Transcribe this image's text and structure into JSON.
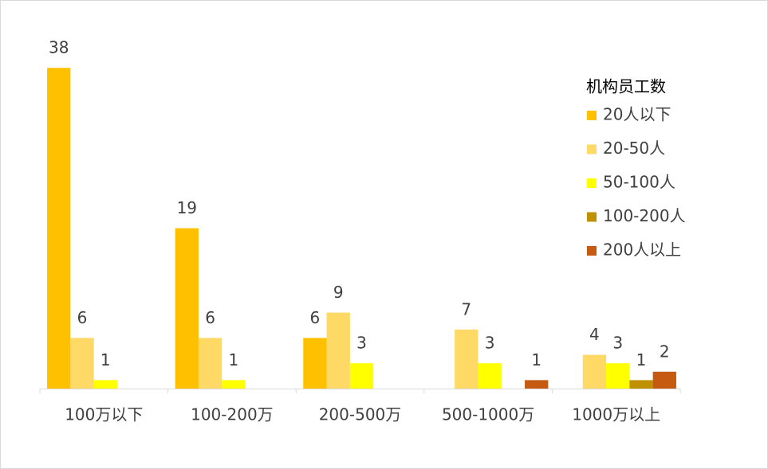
{
  "chart_data": {
    "type": "bar",
    "categories": [
      "100万以下",
      "100-200万",
      "200-500万",
      "500-1000万",
      "1000万以上"
    ],
    "legend_title": "机构员工数",
    "legend_position": "right",
    "ylim": [
      0,
      40
    ],
    "series": [
      {
        "name": "20人以下",
        "color": "#FFC000",
        "values": [
          38,
          19,
          6,
          null,
          null
        ]
      },
      {
        "name": "20-50人",
        "color": "#FFD966",
        "values": [
          6,
          6,
          9,
          7,
          4
        ]
      },
      {
        "name": "50-100人",
        "color": "#FFFF00",
        "values": [
          1,
          1,
          3,
          3,
          3
        ]
      },
      {
        "name": "100-200人",
        "color": "#BF9000",
        "values": [
          null,
          null,
          null,
          null,
          1
        ]
      },
      {
        "name": "200人以上",
        "color": "#C55A11",
        "values": [
          null,
          null,
          null,
          1,
          2
        ]
      }
    ]
  }
}
